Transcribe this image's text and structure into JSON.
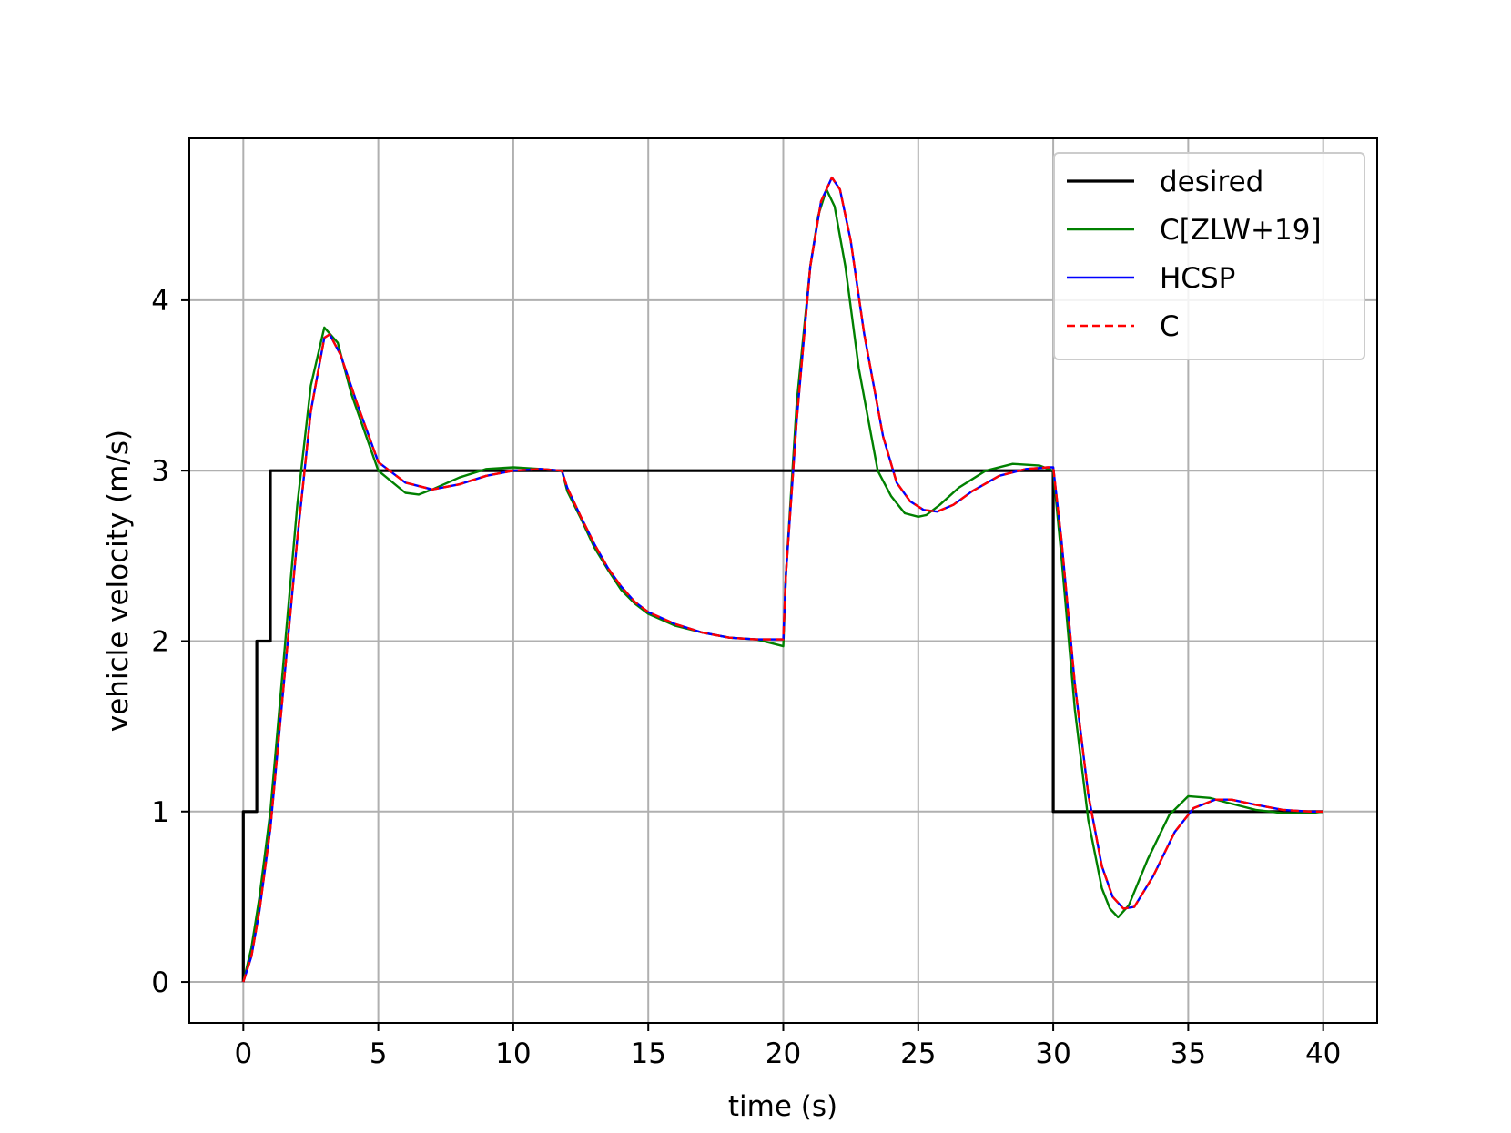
{
  "chart_data": {
    "type": "line",
    "title": "",
    "xlabel": "time (s)",
    "ylabel": "vehicle velocity (m/s)",
    "xlim": [
      -2,
      42
    ],
    "ylim": [
      -0.24,
      4.95
    ],
    "xticks": [
      0,
      5,
      10,
      15,
      20,
      25,
      30,
      35,
      40
    ],
    "yticks": [
      0,
      1,
      2,
      3,
      4
    ],
    "grid": true,
    "legend_position": "top-right",
    "series": [
      {
        "name": "desired",
        "color": "#000000",
        "style": "solid",
        "x": [
          0,
          0,
          0.5,
          0.5,
          1.0,
          1.0,
          30.0,
          30.0,
          40.0
        ],
        "y": [
          0,
          1,
          1,
          2,
          2,
          3,
          3,
          1,
          1
        ]
      },
      {
        "name": "C[ZLW+19]",
        "color": "#008000",
        "style": "solid",
        "x": [
          0,
          0.3,
          0.6,
          1.0,
          1.5,
          2.0,
          2.5,
          3.0,
          3.5,
          4.0,
          5.0,
          6.0,
          6.5,
          7.0,
          8.0,
          9.0,
          10.0,
          11.0,
          11.8,
          12.0,
          12.5,
          13.0,
          13.5,
          14.0,
          14.5,
          15.0,
          16.0,
          17.0,
          18.0,
          19.0,
          20.0,
          20.1,
          20.5,
          21.0,
          21.3,
          21.6,
          21.9,
          22.3,
          22.8,
          23.5,
          24.0,
          24.5,
          25.0,
          25.3,
          25.8,
          26.5,
          27.5,
          28.5,
          29.5,
          30.0,
          30.3,
          30.8,
          31.3,
          31.8,
          32.1,
          32.4,
          32.8,
          33.5,
          34.3,
          35.0,
          35.8,
          36.5,
          37.5,
          38.5,
          39.5,
          40.0
        ],
        "y": [
          0,
          0.2,
          0.5,
          1.0,
          1.9,
          2.8,
          3.5,
          3.84,
          3.75,
          3.45,
          3.0,
          2.87,
          2.86,
          2.89,
          2.96,
          3.01,
          3.02,
          3.01,
          3.0,
          2.88,
          2.72,
          2.55,
          2.42,
          2.3,
          2.22,
          2.16,
          2.09,
          2.05,
          2.02,
          2.01,
          1.97,
          2.4,
          3.4,
          4.2,
          4.5,
          4.65,
          4.55,
          4.2,
          3.6,
          3.0,
          2.85,
          2.75,
          2.73,
          2.74,
          2.8,
          2.9,
          3.0,
          3.04,
          3.03,
          3.0,
          2.5,
          1.6,
          0.95,
          0.55,
          0.43,
          0.38,
          0.45,
          0.72,
          0.98,
          1.09,
          1.08,
          1.05,
          1.01,
          0.99,
          0.99,
          1.0
        ]
      },
      {
        "name": "HCSP",
        "color": "#0000ff",
        "style": "solid",
        "x": [
          0,
          0.3,
          0.6,
          1.0,
          1.5,
          2.0,
          2.5,
          3.0,
          3.2,
          3.6,
          4.2,
          5.0,
          6.0,
          7.0,
          8.0,
          9.0,
          10.0,
          11.0,
          11.8,
          12.0,
          12.5,
          13.0,
          13.5,
          14.0,
          14.5,
          15.0,
          16.0,
          17.0,
          18.0,
          19.0,
          20.0,
          20.1,
          20.5,
          21.0,
          21.4,
          21.8,
          22.1,
          22.5,
          23.0,
          23.7,
          24.2,
          24.7,
          25.2,
          25.7,
          26.3,
          27.0,
          28.0,
          29.0,
          29.8,
          30.0,
          30.3,
          30.8,
          31.3,
          31.8,
          32.2,
          32.6,
          33.0,
          33.7,
          34.5,
          35.2,
          36.0,
          36.6,
          37.5,
          38.5,
          39.5,
          40.0
        ],
        "y": [
          0,
          0.15,
          0.42,
          0.9,
          1.75,
          2.6,
          3.35,
          3.78,
          3.8,
          3.68,
          3.4,
          3.05,
          2.93,
          2.89,
          2.92,
          2.97,
          3.0,
          3.01,
          3.0,
          2.9,
          2.73,
          2.57,
          2.43,
          2.32,
          2.23,
          2.17,
          2.1,
          2.05,
          2.02,
          2.01,
          2.01,
          2.4,
          3.3,
          4.2,
          4.58,
          4.72,
          4.65,
          4.35,
          3.8,
          3.2,
          2.93,
          2.82,
          2.77,
          2.76,
          2.8,
          2.88,
          2.97,
          3.01,
          3.02,
          3.02,
          2.6,
          1.75,
          1.1,
          0.68,
          0.5,
          0.43,
          0.44,
          0.62,
          0.88,
          1.02,
          1.07,
          1.07,
          1.04,
          1.01,
          1.0,
          1.0
        ]
      },
      {
        "name": "C",
        "color": "#ff0000",
        "style": "dashed",
        "x": [
          0,
          0.3,
          0.6,
          1.0,
          1.5,
          2.0,
          2.5,
          3.0,
          3.2,
          3.6,
          4.2,
          5.0,
          6.0,
          7.0,
          8.0,
          9.0,
          10.0,
          11.0,
          11.8,
          12.0,
          12.5,
          13.0,
          13.5,
          14.0,
          14.5,
          15.0,
          16.0,
          17.0,
          18.0,
          19.0,
          20.0,
          20.1,
          20.5,
          21.0,
          21.4,
          21.8,
          22.1,
          22.5,
          23.0,
          23.7,
          24.2,
          24.7,
          25.2,
          25.7,
          26.3,
          27.0,
          28.0,
          29.0,
          29.8,
          30.0,
          30.3,
          30.8,
          31.3,
          31.8,
          32.2,
          32.6,
          33.0,
          33.7,
          34.5,
          35.2,
          36.0,
          36.6,
          37.5,
          38.5,
          39.5,
          40.0
        ],
        "y": [
          0,
          0.15,
          0.42,
          0.9,
          1.75,
          2.6,
          3.35,
          3.78,
          3.8,
          3.68,
          3.4,
          3.05,
          2.93,
          2.89,
          2.92,
          2.97,
          3.0,
          3.01,
          3.0,
          2.9,
          2.73,
          2.57,
          2.43,
          2.32,
          2.23,
          2.17,
          2.1,
          2.05,
          2.02,
          2.01,
          2.01,
          2.4,
          3.3,
          4.2,
          4.58,
          4.72,
          4.65,
          4.35,
          3.8,
          3.2,
          2.93,
          2.82,
          2.77,
          2.76,
          2.8,
          2.88,
          2.97,
          3.01,
          3.02,
          3.02,
          2.6,
          1.75,
          1.1,
          0.68,
          0.5,
          0.43,
          0.44,
          0.62,
          0.88,
          1.02,
          1.07,
          1.07,
          1.04,
          1.01,
          1.0,
          1.0
        ]
      }
    ]
  }
}
